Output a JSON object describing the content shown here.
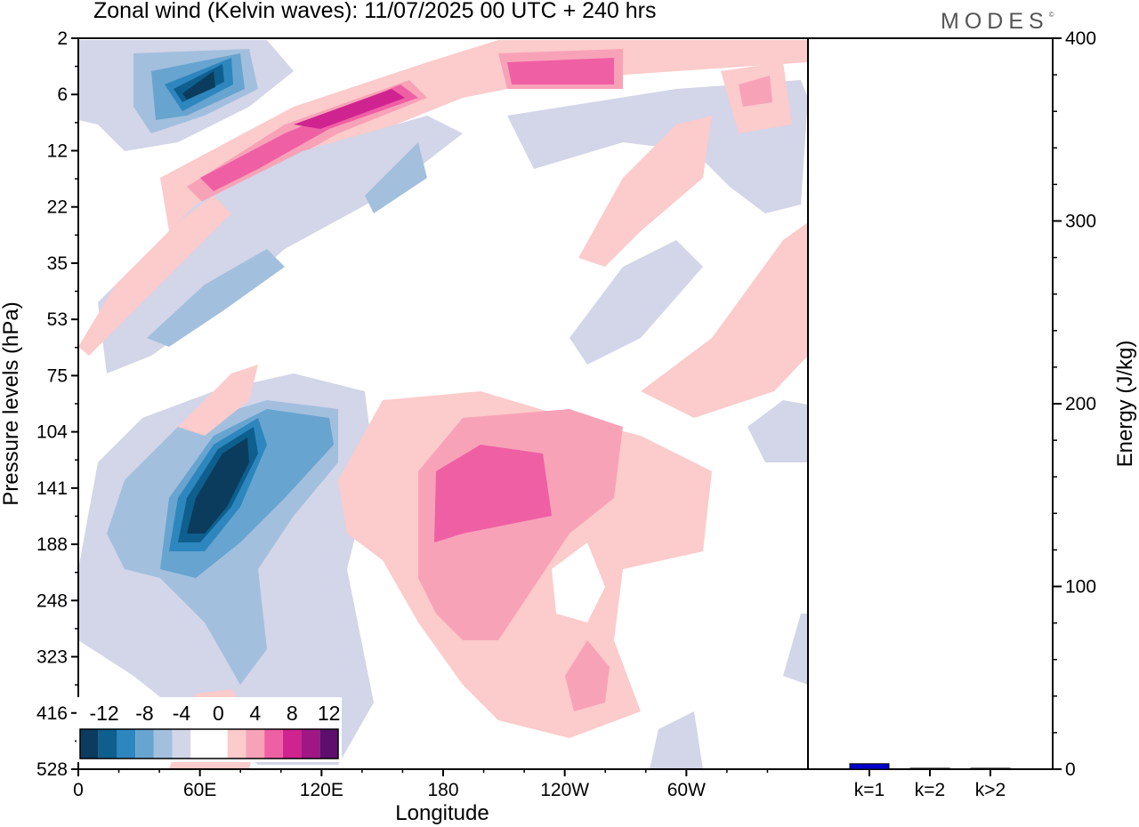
{
  "chart_data": [
    {
      "type": "heatmap",
      "title": "Zonal wind (Kelvin waves):  11/07/2025  00 UTC  + 240 hrs",
      "xlabel": "Longitude",
      "ylabel": "Pressure levels (hPa)",
      "x_ticks": [
        "0",
        "60E",
        "120E",
        "180",
        "120W",
        "60W"
      ],
      "y_ticks": [
        "2",
        "6",
        "12",
        "22",
        "35",
        "53",
        "75",
        "104",
        "141",
        "188",
        "248",
        "323",
        "416",
        "528"
      ],
      "colorbar": {
        "labels": [
          "-12",
          "-8",
          "-4",
          "0",
          "4",
          "8",
          "12"
        ],
        "colors": [
          "#0b3c5d",
          "#0e5f8e",
          "#2e86be",
          "#67a4cf",
          "#a3bfde",
          "#d3d5e8",
          "#ffffff",
          "#ffffff",
          "#fccbcb",
          "#f8a2b8",
          "#ef5fa4",
          "#cf2390",
          "#a01784",
          "#5e0f6e"
        ]
      }
    },
    {
      "type": "bar",
      "ylabel": "Energy (J/kg)",
      "categories": [
        "k=1",
        "k=2",
        "k>2"
      ],
      "values": [
        3,
        0.5,
        0.5
      ],
      "ylim": [
        0,
        400
      ],
      "y_ticks": [
        "0",
        "100",
        "200",
        "300",
        "400"
      ],
      "bar_color": "#0000cc"
    }
  ],
  "brand": "MODES",
  "colors": {
    "neg_weak": "#d3d5e8",
    "neg_2": "#a3bfde",
    "neg_3": "#67a4cf",
    "neg_4": "#2e86be",
    "neg_5": "#0e5f8e",
    "neg_6": "#0b3c5d",
    "pos_weak": "#fccbcb",
    "pos_2": "#f8a2b8",
    "pos_3": "#ef5fa4",
    "pos_4": "#cf2390",
    "pos_5": "#a01784"
  }
}
